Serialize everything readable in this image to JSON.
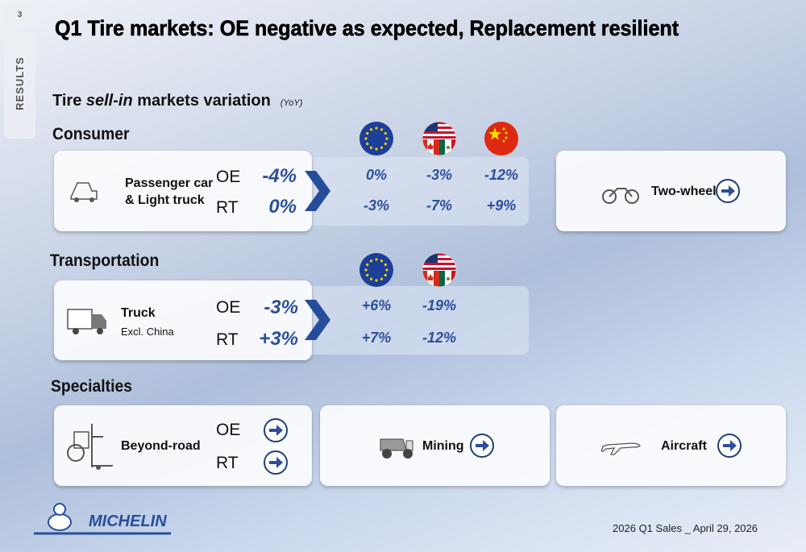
{
  "page_number": "3",
  "section_tab": "RESULTS",
  "title": "Q1 Tire markets: OE negative as expected, Replacement resilient",
  "subtitle": {
    "text_start": "Tire ",
    "text_italic": "sell-in",
    "text_end": " markets variation",
    "note": "(YoY)"
  },
  "consumer": {
    "heading": "Consumer",
    "segment_line1": "Passenger car",
    "segment_line2": "& Light truck",
    "rows": [
      {
        "label": "OE",
        "total": "-4%",
        "regions": [
          "0%",
          "-3%",
          "-12%"
        ]
      },
      {
        "label": "RT",
        "total": "0%",
        "regions": [
          "-3%",
          "-7%",
          "+9%"
        ]
      }
    ],
    "side_segment": "Two-wheel"
  },
  "transportation": {
    "heading": "Transportation",
    "segment_line1": "Truck",
    "segment_line2": "Excl. China",
    "rows": [
      {
        "label": "OE",
        "total": "-3%",
        "regions": [
          "+6%",
          "-19%"
        ]
      },
      {
        "label": "RT",
        "total": "+3%",
        "regions": [
          "+7%",
          "-12%"
        ]
      }
    ]
  },
  "specialties": {
    "heading": "Specialties",
    "segments": [
      {
        "label": "Beyond-road",
        "rows": [
          "OE",
          "RT"
        ]
      },
      {
        "label": "Mining"
      },
      {
        "label": "Aircraft"
      }
    ]
  },
  "footer": {
    "brand": "MICHELIN",
    "event": "2026 Q1 Sales _ April 29, 2026"
  }
}
